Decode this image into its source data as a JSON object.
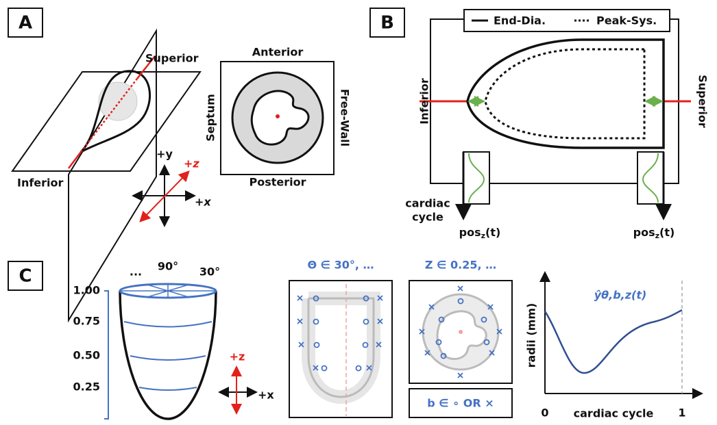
{
  "panels": {
    "A": {
      "label": "A",
      "planes": {
        "superior": "Superior",
        "inferior": "Inferior"
      },
      "axes": {
        "y": "+y",
        "z": "+z",
        "x": "+x"
      },
      "cross_section": {
        "anterior": "Anterior",
        "posterior": "Posterior",
        "septum": "Septum",
        "free_wall": "Free-Wall"
      }
    },
    "B": {
      "label": "B",
      "legend": {
        "solid": "End-Dia.",
        "dotted": "Peak-Sys."
      },
      "inferior": "Inferior",
      "superior": "Superior",
      "time_axis": [
        "cardiac",
        "cycle"
      ],
      "position_label": {
        "base": "pos",
        "sub": "z",
        "tail": "(t)"
      }
    },
    "C": {
      "label": "C",
      "angles": [
        "...",
        "90°",
        "30°"
      ],
      "levels": [
        "1.00",
        "0.75",
        "0.50",
        "0.25"
      ],
      "axes": {
        "z": "+z",
        "x": "+x"
      },
      "theta_label": "Θ ∈ 30°, …",
      "z_label": "Z ∈ 0.25, …",
      "b_label": "b ∈ ∘ OR ×",
      "plot": {
        "curve_label": "ŷθ,b,z(t)",
        "y_label": "radii (mm)",
        "x_label": "cardiac cycle",
        "x_ticks": [
          "0",
          "1"
        ]
      }
    }
  }
}
